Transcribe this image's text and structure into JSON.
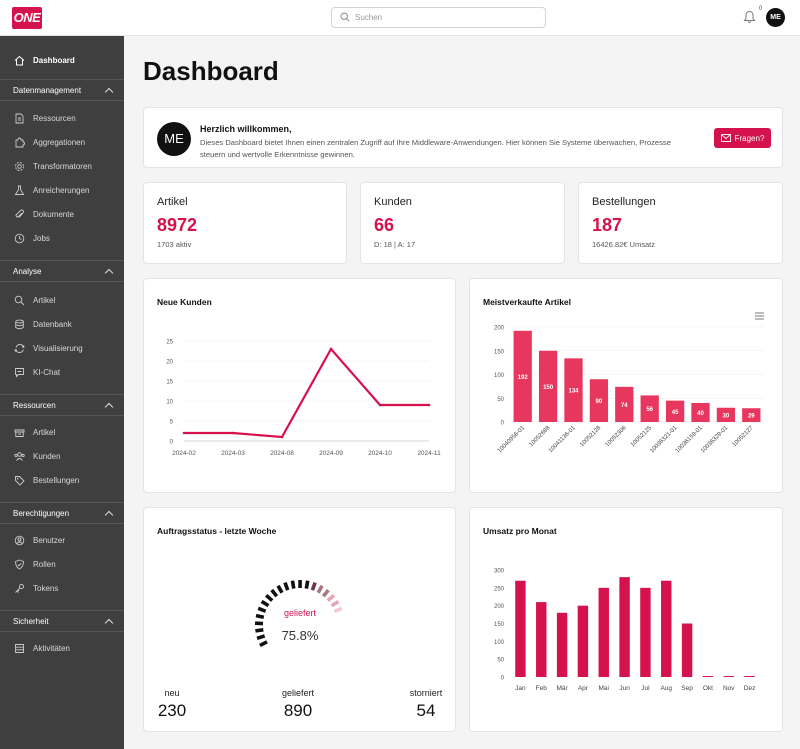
{
  "app": {
    "logo_text": "ONE"
  },
  "search": {
    "placeholder": "Suchen"
  },
  "notifications": {
    "count": "0"
  },
  "user": {
    "initials": "ME"
  },
  "sidebar": {
    "dashboard": "Dashboard",
    "sections": [
      {
        "title": "Datenmanagement",
        "items": [
          "Ressourcen",
          "Aggregationen",
          "Transformatoren",
          "Anreicherungen",
          "Dokumente",
          "Jobs"
        ]
      },
      {
        "title": "Analyse",
        "items": [
          "Artikel",
          "Datenbank",
          "Visualisierung",
          "KI-Chat"
        ]
      },
      {
        "title": "Ressourcen",
        "items": [
          "Artikel",
          "Kunden",
          "Bestellungen"
        ]
      },
      {
        "title": "Berechtigungen",
        "items": [
          "Benutzer",
          "Rollen",
          "Tokens"
        ]
      },
      {
        "title": "Sicherheit",
        "items": [
          "Aktivitäten"
        ]
      }
    ]
  },
  "page": {
    "title": "Dashboard"
  },
  "welcome": {
    "title": "Herzlich willkommen,",
    "text": "Dieses Dashboard bietet Ihnen einen zentralen Zugriff auf Ihre Middleware-Anwendungen. Hier können Sie Systeme überwachen, Prozesse steuern und wertvolle Erkenntnisse gewinnen.",
    "button": "Fragen?"
  },
  "stats": [
    {
      "label": "Artikel",
      "value": "8972",
      "sub": "1703 aktiv"
    },
    {
      "label": "Kunden",
      "value": "66",
      "sub": "D: 18 | A: 17"
    },
    {
      "label": "Bestellungen",
      "value": "187",
      "sub": "16426.82€ Umsatz"
    }
  ],
  "colors": {
    "accent": "#d6124e",
    "bar_accent": "#e8375f"
  },
  "chart_data": [
    {
      "type": "line",
      "title": "Neue Kunden",
      "categories": [
        "2024-02",
        "2024-03",
        "2024-08",
        "2024-09",
        "2024-10",
        "2024-11"
      ],
      "values": [
        2,
        2,
        1,
        23,
        9,
        9
      ],
      "yticks": [
        0,
        5,
        10,
        15,
        20,
        25
      ],
      "ylim": [
        0,
        25
      ]
    },
    {
      "type": "bar",
      "title": "Meistverkaufte Artikel",
      "categories": [
        "10040956-01",
        "10052688",
        "10041136-01",
        "10052128",
        "10052306",
        "10052125",
        "10036321-01",
        "10036159-01",
        "10036329-01",
        "10052127"
      ],
      "values": [
        192,
        150,
        134,
        90,
        74,
        56,
        45,
        40,
        30,
        29
      ],
      "yticks": [
        0,
        50,
        100,
        150,
        200
      ],
      "ylim": [
        0,
        200
      ]
    },
    {
      "type": "bar",
      "title": "Umsatz pro Monat",
      "categories": [
        "Jan",
        "Feb",
        "Mär",
        "Apr",
        "Mai",
        "Jun",
        "Jul",
        "Aug",
        "Sep",
        "Okt",
        "Nov",
        "Dez"
      ],
      "values": [
        270,
        210,
        180,
        200,
        250,
        280,
        250,
        270,
        150,
        0,
        0,
        0
      ],
      "yticks": [
        0,
        50,
        100,
        150,
        200,
        250,
        300
      ],
      "ylim": [
        0,
        300
      ]
    }
  ],
  "order_status": {
    "title": "Auftragsstatus - letzte Woche",
    "gauge_label": "geliefert",
    "gauge_value": "75.8%",
    "gauge_fraction": 0.758,
    "items": [
      {
        "label": "neu",
        "value": "230"
      },
      {
        "label": "geliefert",
        "value": "890"
      },
      {
        "label": "storniert",
        "value": "54"
      }
    ]
  }
}
